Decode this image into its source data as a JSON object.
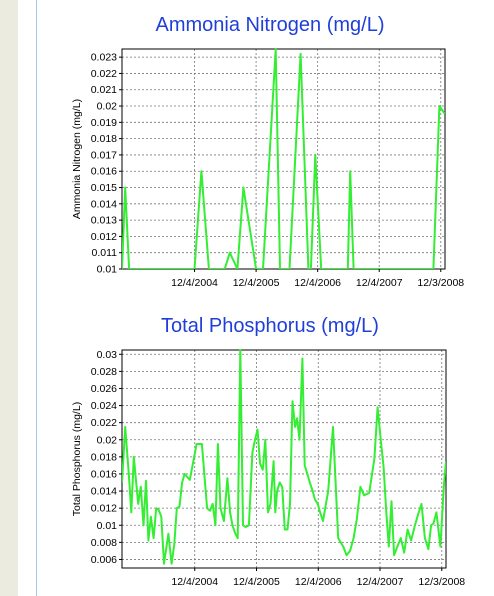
{
  "colors": {
    "series": "#33ee33",
    "title": "#1f3fd8",
    "grid": "#777777",
    "strip": "#ecebe0",
    "border": "#a9c9e6"
  },
  "chart_data": [
    {
      "type": "line",
      "title": "Ammonia Nitrogen (mg/L)",
      "xlabel": "",
      "ylabel": "Ammonia Nitrogen (mg/L)",
      "ylim": [
        0.01,
        0.0235
      ],
      "xlim": [
        "2003-10-01",
        "2008-12-28"
      ],
      "grid": true,
      "y_ticks": [
        "0.01",
        "0.011",
        "0.012",
        "0.013",
        "0.014",
        "0.015",
        "0.016",
        "0.017",
        "0.018",
        "0.019",
        "0.02",
        "0.021",
        "0.022",
        "0.023"
      ],
      "x_ticks": [
        {
          "date": "2004-12-04",
          "label": "12/4/2004"
        },
        {
          "date": "2005-12-04",
          "label": "12/4/2005"
        },
        {
          "date": "2006-12-04",
          "label": "12/4/2006"
        },
        {
          "date": "2007-12-04",
          "label": "12/4/2007"
        },
        {
          "date": "2008-12-03",
          "label": "12/3/2008"
        }
      ],
      "series": [
        {
          "x": [
            "2003-10-01",
            "2003-10-20",
            "2003-11-12",
            "2004-12-04",
            "2005-01-14",
            "2005-02-27",
            "2005-06-01",
            "2005-07-01",
            "2005-08-15",
            "2005-09-20",
            "2005-12-04",
            "2006-01-14",
            "2006-03-30",
            "2006-04-25",
            "2006-05-10",
            "2006-06-20",
            "2006-08-25",
            "2006-10-10",
            "2006-10-25",
            "2006-11-20",
            "2006-12-25",
            "2007-02-01",
            "2007-06-01",
            "2007-06-15",
            "2007-07-05",
            "2007-07-30",
            "2008-10-20",
            "2008-11-25",
            "2008-12-28"
          ],
          "y": [
            0.01,
            0.015,
            0.01,
            0.01,
            0.016,
            0.01,
            0.01,
            0.011,
            0.01,
            0.015,
            0.01,
            0.01,
            0.0235,
            0.01,
            0.01,
            0.01,
            0.0232,
            0.01,
            0.01,
            0.017,
            0.01,
            0.01,
            0.01,
            0.016,
            0.01,
            0.01,
            0.01,
            0.02,
            0.0195
          ]
        }
      ]
    },
    {
      "type": "line",
      "title": "Total Phosphorus (mg/L)",
      "xlabel": "",
      "ylabel": "Total Phosphorus (mg/L)",
      "ylim": [
        0.005,
        0.0305
      ],
      "xlim": [
        "2003-10-01",
        "2008-12-28"
      ],
      "grid": true,
      "y_ticks": [
        "0.006",
        "0.008",
        "0.01",
        "0.012",
        "0.014",
        "0.016",
        "0.018",
        "0.02",
        "0.022",
        "0.024",
        "0.026",
        "0.028",
        "0.03"
      ],
      "x_ticks": [
        {
          "date": "2004-12-04",
          "label": "12/4/2004"
        },
        {
          "date": "2005-12-04",
          "label": "12/4/2005"
        },
        {
          "date": "2006-12-04",
          "label": "12/4/2006"
        },
        {
          "date": "2007-12-04",
          "label": "12/4/2007"
        },
        {
          "date": "2008-12-03",
          "label": "12/3/2008"
        }
      ],
      "series": [
        {
          "x": [
            "2003-10-01",
            "2003-10-20",
            "2003-11-10",
            "2003-11-25",
            "2003-12-10",
            "2004-01-05",
            "2004-01-20",
            "2004-02-05",
            "2004-02-20",
            "2004-03-05",
            "2004-03-20",
            "2004-04-05",
            "2004-04-20",
            "2004-05-05",
            "2004-05-20",
            "2004-06-05",
            "2004-06-20",
            "2004-07-01",
            "2004-07-20",
            "2004-08-05",
            "2004-08-20",
            "2004-09-05",
            "2004-09-20",
            "2004-10-05",
            "2004-11-05",
            "2004-12-15",
            "2005-01-15",
            "2005-02-15",
            "2005-03-05",
            "2005-03-20",
            "2005-04-05",
            "2005-04-20",
            "2005-05-05",
            "2005-05-25",
            "2005-06-15",
            "2005-07-01",
            "2005-07-15",
            "2005-08-01",
            "2005-08-15",
            "2005-08-30",
            "2005-09-15",
            "2005-10-01",
            "2005-10-20",
            "2005-11-10",
            "2005-11-25",
            "2005-12-10",
            "2005-12-25",
            "2006-01-10",
            "2006-01-25",
            "2006-02-10",
            "2006-02-25",
            "2006-03-15",
            "2006-03-25",
            "2006-04-05",
            "2006-04-20",
            "2006-05-05",
            "2006-05-20",
            "2006-06-05",
            "2006-06-20",
            "2006-07-05",
            "2006-07-20",
            "2006-08-01",
            "2006-08-15",
            "2006-09-01",
            "2006-09-15",
            "2006-10-01",
            "2006-10-15",
            "2006-11-01",
            "2006-11-15",
            "2006-12-01",
            "2006-12-15",
            "2007-01-01",
            "2007-02-01",
            "2007-03-01",
            "2007-04-01",
            "2007-05-01",
            "2007-05-20",
            "2007-06-10",
            "2007-07-01",
            "2007-07-20",
            "2007-08-10",
            "2007-09-01",
            "2007-10-01",
            "2007-11-01",
            "2007-11-20",
            "2007-12-10",
            "2007-12-25",
            "2008-01-10",
            "2008-01-25",
            "2008-02-10",
            "2008-02-25",
            "2008-03-15",
            "2008-04-05",
            "2008-04-25",
            "2008-05-15",
            "2008-06-05",
            "2008-06-25",
            "2008-07-15",
            "2008-08-05",
            "2008-08-25",
            "2008-09-15",
            "2008-10-01",
            "2008-10-15",
            "2008-11-01",
            "2008-11-25",
            "2008-12-15",
            "2008-12-28"
          ],
          "y": [
            0.015,
            0.0215,
            0.016,
            0.0115,
            0.018,
            0.0125,
            0.0145,
            0.01,
            0.0152,
            0.0082,
            0.011,
            0.0085,
            0.012,
            0.0118,
            0.011,
            0.0055,
            0.0075,
            0.009,
            0.0055,
            0.0078,
            0.012,
            0.0122,
            0.015,
            0.016,
            0.0153,
            0.0195,
            0.0195,
            0.012,
            0.0117,
            0.0125,
            0.01,
            0.0195,
            0.012,
            0.0105,
            0.0155,
            0.0115,
            0.01,
            0.009,
            0.0085,
            0.0305,
            0.01,
            0.0098,
            0.01,
            0.0185,
            0.02,
            0.0212,
            0.0172,
            0.0165,
            0.02,
            0.0115,
            0.0125,
            0.0175,
            0.0115,
            0.014,
            0.015,
            0.0145,
            0.0095,
            0.0095,
            0.0125,
            0.0245,
            0.0215,
            0.0225,
            0.02,
            0.0295,
            0.017,
            0.016,
            0.015,
            0.014,
            0.013,
            0.0125,
            0.0115,
            0.0105,
            0.014,
            0.0215,
            0.0085,
            0.0075,
            0.0065,
            0.007,
            0.0085,
            0.0107,
            0.0145,
            0.0135,
            0.0138,
            0.0178,
            0.0238,
            0.0197,
            0.0168,
            0.0115,
            0.0075,
            0.0128,
            0.0065,
            0.0075,
            0.0085,
            0.0068,
            0.0095,
            0.0082,
            0.0098,
            0.0112,
            0.0125,
            0.0085,
            0.0072,
            0.01,
            0.0102,
            0.0115,
            0.0075,
            0.0145,
            0.0175
          ]
        }
      ]
    }
  ]
}
